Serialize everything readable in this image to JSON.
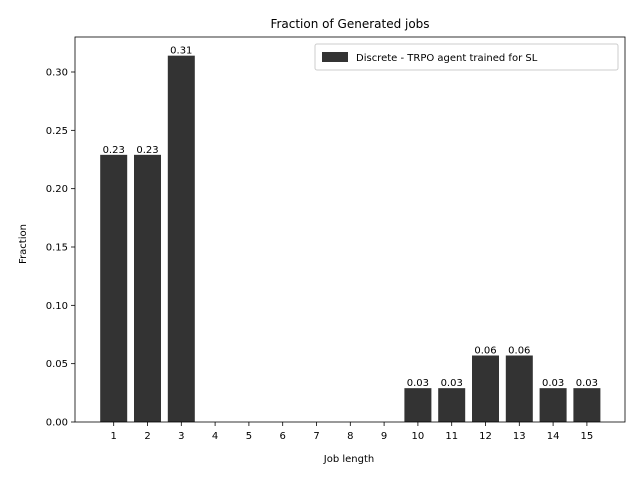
{
  "chart_data": {
    "type": "bar",
    "title": "Fraction of Generated jobs",
    "xlabel": "Job length",
    "ylabel": "Fraction",
    "categories": [
      "1",
      "2",
      "3",
      "4",
      "5",
      "6",
      "7",
      "8",
      "9",
      "10",
      "11",
      "12",
      "13",
      "14",
      "15"
    ],
    "series": [
      {
        "name": "Discrete - TRPO agent trained for SL",
        "color": "#333333",
        "values": [
          0.229,
          0.229,
          0.314,
          0,
          0,
          0,
          0,
          0,
          0,
          0.029,
          0.029,
          0.057,
          0.057,
          0.029,
          0.029
        ],
        "labels": [
          "0.23",
          "0.23",
          "0.31",
          "",
          "",
          "",
          "",
          "",
          "",
          "0.03",
          "0.03",
          "0.06",
          "0.06",
          "0.03",
          "0.03"
        ]
      }
    ],
    "ylim": [
      0,
      0.33
    ],
    "yticks": [
      0.0,
      0.05,
      0.1,
      0.15,
      0.2,
      0.25,
      0.3
    ],
    "ytick_labels": [
      "0.00",
      "0.05",
      "0.10",
      "0.15",
      "0.20",
      "0.25",
      "0.30"
    ],
    "grid": false,
    "legend_position": "top-right"
  }
}
